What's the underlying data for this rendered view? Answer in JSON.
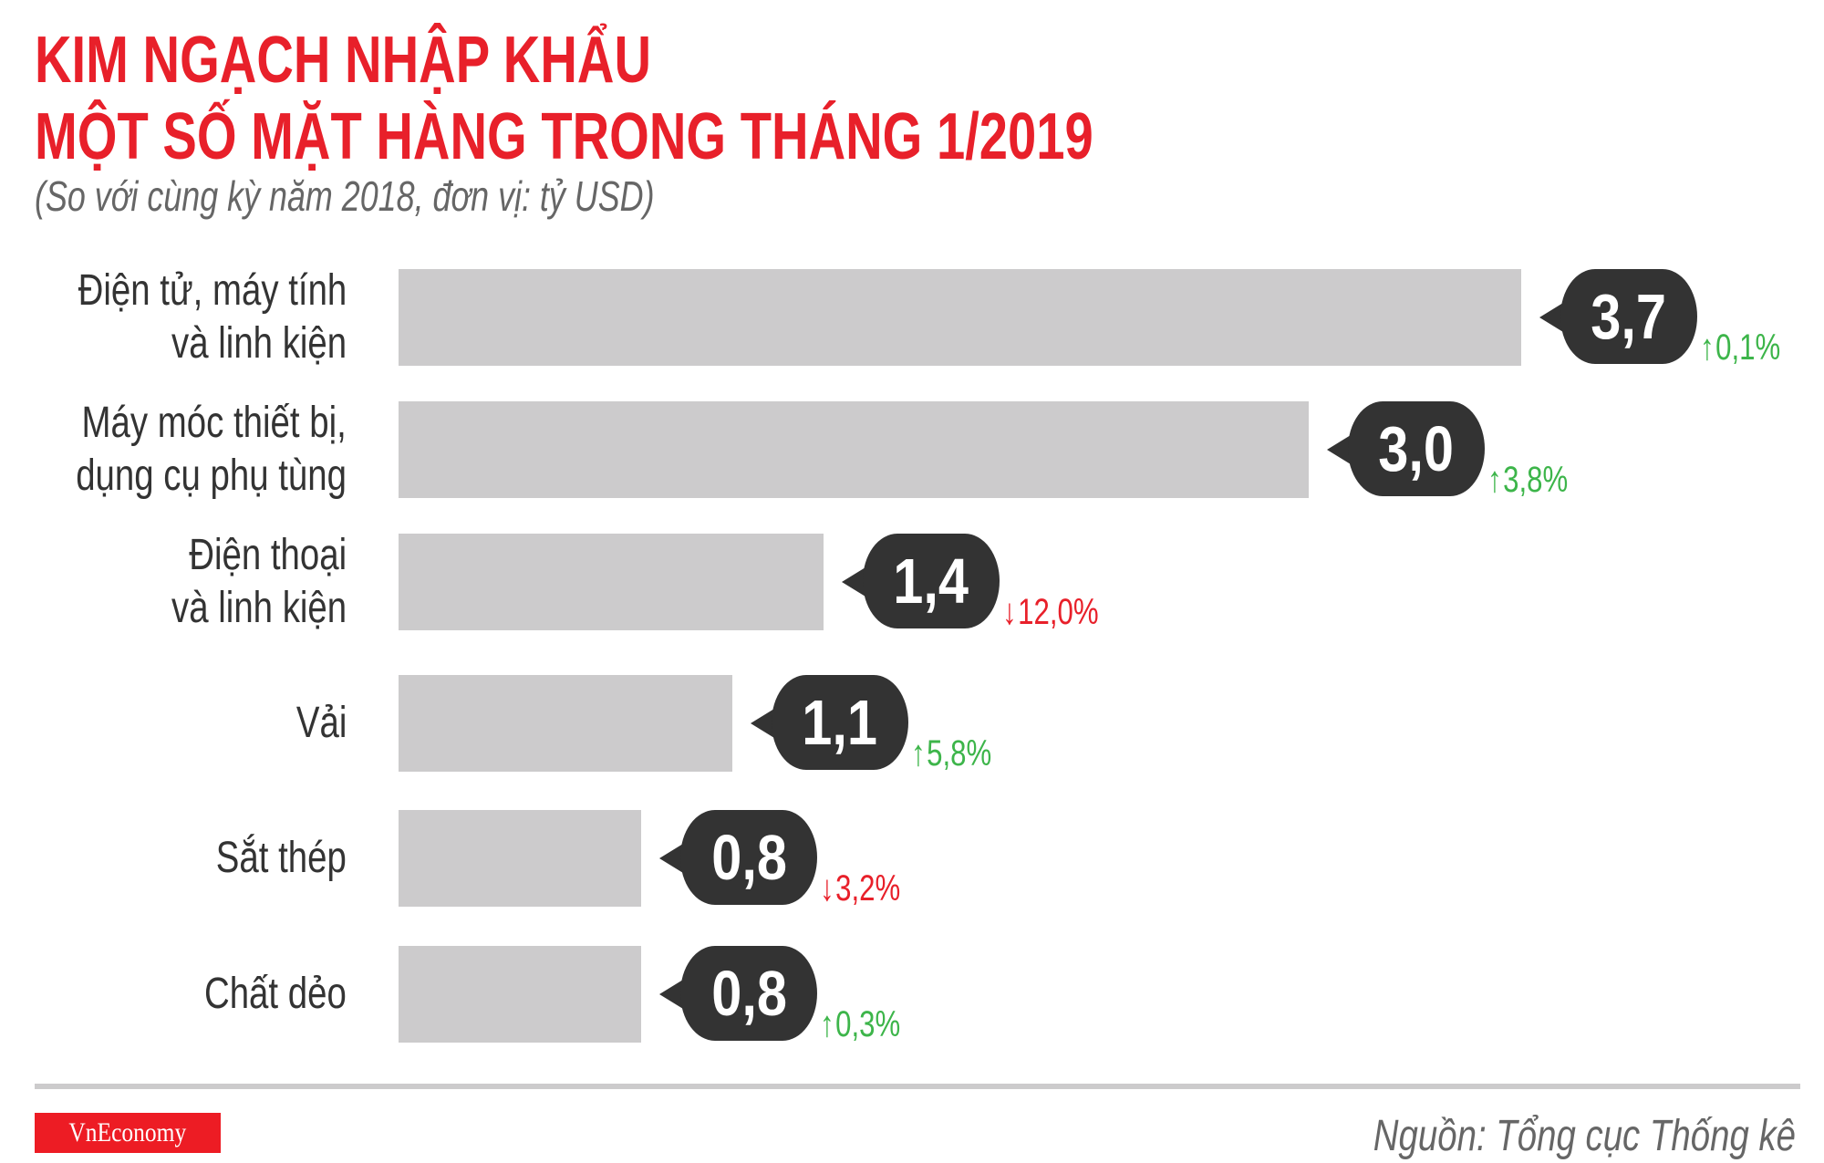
{
  "title_line1": "KIM NGẠCH NHẬP KHẨU",
  "title_line2": "MỘT SỐ MẶT HÀNG TRONG THÁNG 1/2019",
  "subtitle": "(So với cùng kỳ năm 2018, đơn vị: tỷ USD)",
  "source": "Nguồn: Tổng cục Thống kê",
  "logo": "VnEconomy",
  "colors": {
    "title": "#e8202a",
    "bar": "#cccbcc",
    "bubble": "#333333",
    "up": "#3db54a",
    "down": "#e8202a"
  },
  "chart_data": {
    "type": "bar",
    "orientation": "horizontal",
    "title": "KIM NGẠCH NHẬP KHẨU MỘT SỐ MẶT HÀNG TRONG THÁNG 1/2019",
    "subtitle": "(So với cùng kỳ năm 2018, đơn vị: tỷ USD)",
    "xlim": [
      0,
      3.7
    ],
    "grid": false,
    "categories": [
      [
        "Điện tử, máy tính",
        "và linh kiện"
      ],
      [
        "Máy móc thiết bị,",
        "dụng cụ phụ tùng"
      ],
      [
        "Điện thoại",
        "và linh kiện"
      ],
      [
        "Vải"
      ],
      [
        "Sắt thép"
      ],
      [
        "Chất dẻo"
      ]
    ],
    "values": [
      3.7,
      3.0,
      1.4,
      1.1,
      0.8,
      0.8
    ],
    "value_labels": [
      "3,7",
      "3,0",
      "1,4",
      "1,1",
      "0,8",
      "0,8"
    ],
    "changes": [
      {
        "direction": "up",
        "label": "0,1%"
      },
      {
        "direction": "up",
        "label": "3,8%"
      },
      {
        "direction": "down",
        "label": "12,0%"
      },
      {
        "direction": "up",
        "label": "5,8%"
      },
      {
        "direction": "down",
        "label": "3,2%"
      },
      {
        "direction": "up",
        "label": "0,3%"
      }
    ]
  }
}
